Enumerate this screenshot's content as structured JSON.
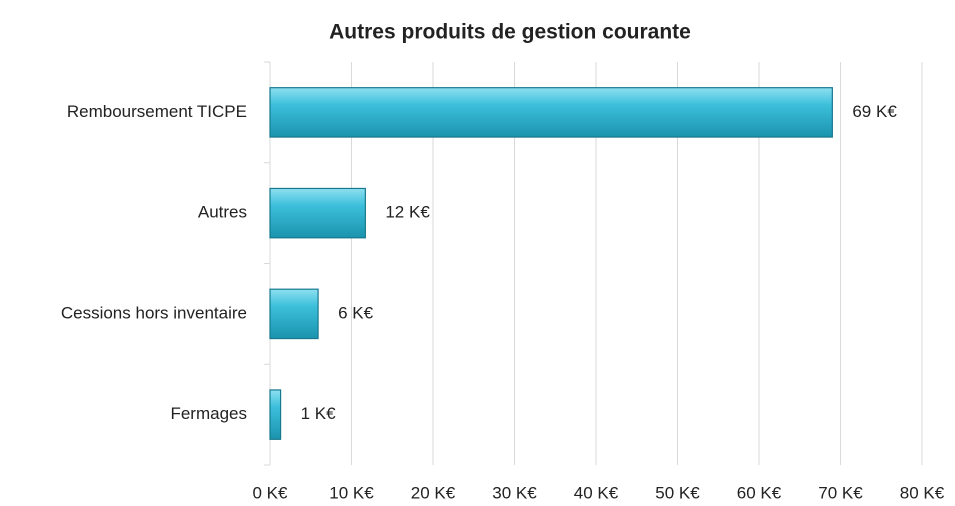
{
  "chart_data": {
    "type": "hbar",
    "title": "Autres produits de gestion courante",
    "categories": [
      "Remboursement TICPE",
      "Autres",
      "Cessions hors inventaire",
      "Fermages"
    ],
    "values": [
      69,
      11.7,
      5.9,
      1.3
    ],
    "value_labels": [
      "69 K€",
      "12 K€",
      "6 K€",
      "1 K€"
    ],
    "color": "#31b6d3",
    "xlim": [
      0,
      80
    ],
    "xticks": [
      {
        "value": 0,
        "label": "0 K€"
      },
      {
        "value": 10,
        "label": "10 K€"
      },
      {
        "value": 20,
        "label": "20 K€"
      },
      {
        "value": 30,
        "label": "30 K€"
      },
      {
        "value": 40,
        "label": "40 K€"
      },
      {
        "value": 50,
        "label": "50 K€"
      },
      {
        "value": 60,
        "label": "60 K€"
      },
      {
        "value": 70,
        "label": "70 K€"
      },
      {
        "value": 80,
        "label": "80 K€"
      }
    ],
    "grid": true
  }
}
